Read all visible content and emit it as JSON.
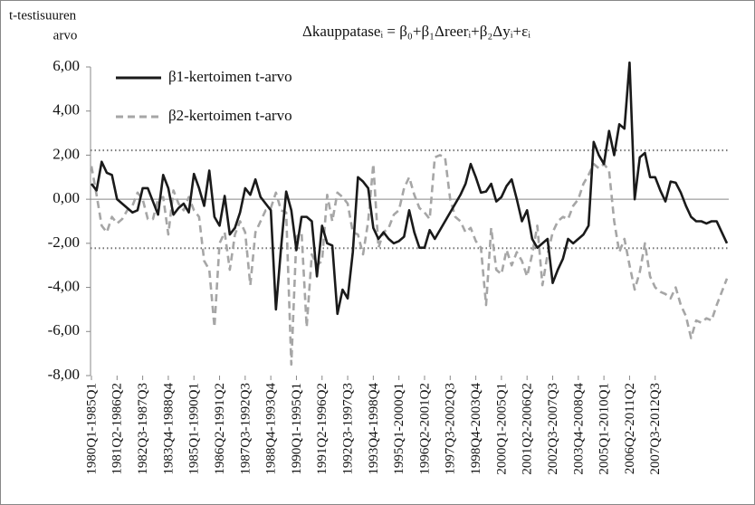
{
  "chart_data": {
    "type": "line",
    "title": "Δkauppataseᵢ = β₀+β₁Δreerᵢ+β₂Δyᵢ+εᵢ",
    "y_label": [
      "t-testisuuren",
      "arvo"
    ],
    "categories": [
      "1980Q1-1985Q1",
      null,
      null,
      null,
      null,
      "1981Q2-1986Q2",
      null,
      null,
      null,
      null,
      "1982Q3-1987Q3",
      null,
      null,
      null,
      null,
      "1983Q4-1988Q4",
      null,
      null,
      null,
      null,
      "1985Q1-1990Q1",
      null,
      null,
      null,
      null,
      "1986Q2-1991Q2",
      null,
      null,
      null,
      null,
      "1987Q3-1992Q3",
      null,
      null,
      null,
      null,
      "1988Q4-1993Q4",
      null,
      null,
      null,
      null,
      "1990Q1-1995Q1",
      null,
      null,
      null,
      null,
      "1991Q2-1996Q2",
      null,
      null,
      null,
      null,
      "1992Q3-1997Q3",
      null,
      null,
      null,
      null,
      "1993Q4-1998Q4",
      null,
      null,
      null,
      null,
      "1995Q1-2000Q1",
      null,
      null,
      null,
      null,
      "1996Q2-2001Q2",
      null,
      null,
      null,
      null,
      "1997Q3-2002Q3",
      null,
      null,
      null,
      null,
      "1998Q4-2003Q4",
      null,
      null,
      null,
      null,
      "2000Q1-2005Q1",
      null,
      null,
      null,
      null,
      "2001Q2-2006Q2",
      null,
      null,
      null,
      null,
      "2002Q3-2007Q3",
      null,
      null,
      null,
      null,
      "2003Q4-2008Q4",
      null,
      null,
      null,
      null,
      "2005Q1-2010Q1",
      null,
      null,
      null,
      null,
      "2006Q2-2011Q2",
      null,
      null,
      null,
      null,
      "2007Q3-2012Q3",
      null,
      null,
      null,
      null,
      null,
      null,
      null,
      null,
      null,
      null,
      null,
      null,
      null,
      null
    ],
    "series": [
      {
        "name": "β1-kertoimen t-arvo",
        "color": "#1a1a1a",
        "dashed": false,
        "values": [
          0.7,
          0.4,
          1.7,
          1.2,
          1.1,
          0.0,
          -0.2,
          -0.4,
          -0.6,
          -0.5,
          0.5,
          0.5,
          -0.1,
          -0.7,
          1.1,
          0.5,
          -0.7,
          -0.4,
          -0.2,
          -0.6,
          1.15,
          0.5,
          -0.3,
          1.3,
          -0.8,
          -1.2,
          0.15,
          -1.6,
          -1.3,
          -0.6,
          0.5,
          0.2,
          0.9,
          0.1,
          -0.2,
          -0.5,
          -5.0,
          -2.2,
          0.35,
          -0.5,
          -2.3,
          -0.8,
          -0.8,
          -1.0,
          -3.5,
          -1.2,
          -2.0,
          -2.1,
          -5.2,
          -4.1,
          -4.5,
          -2.4,
          1.0,
          0.8,
          0.5,
          -1.3,
          -1.8,
          -1.5,
          -1.8,
          -2.0,
          -1.9,
          -1.7,
          -0.5,
          -1.5,
          -2.2,
          -2.2,
          -1.4,
          -1.8,
          -1.4,
          -1.0,
          -0.6,
          -0.2,
          0.2,
          0.7,
          1.6,
          1.0,
          0.3,
          0.35,
          0.7,
          -0.1,
          0.1,
          0.6,
          0.9,
          0.0,
          -1.0,
          -0.5,
          -1.8,
          -2.2,
          -2.0,
          -1.8,
          -3.8,
          -3.2,
          -2.7,
          -1.8,
          -2.0,
          -1.8,
          -1.6,
          -1.2,
          2.6,
          2.0,
          1.6,
          3.1,
          2.0,
          3.4,
          3.2,
          6.2,
          0.0,
          1.9,
          2.1,
          1.0,
          1.0,
          0.4,
          -0.1,
          0.8,
          0.75,
          0.3,
          -0.3,
          -0.8,
          -1.0,
          -1.0,
          -1.1,
          -1.0,
          -1.0,
          -1.5,
          -2.0
        ]
      },
      {
        "name": "β2-kertoimen t-arvo",
        "color": "#a6a6a6",
        "dashed": true,
        "values": [
          1.5,
          0.2,
          -1.2,
          -1.5,
          -0.8,
          -1.1,
          -0.9,
          -0.5,
          -0.3,
          0.3,
          0.0,
          -0.9,
          -0.9,
          0.0,
          0.1,
          -1.6,
          0.4,
          -0.2,
          -0.5,
          0.1,
          -0.5,
          -0.8,
          -2.8,
          -3.2,
          -5.8,
          -2.0,
          -1.5,
          -3.2,
          -1.6,
          -1.0,
          -1.5,
          -3.9,
          -1.5,
          -1.0,
          -0.5,
          -0.4,
          0.3,
          -0.5,
          -0.6,
          -7.5,
          -1.7,
          -1.5,
          -5.8,
          -2.5,
          -3.0,
          -2.8,
          0.2,
          -1.0,
          0.3,
          0.1,
          -0.2,
          -1.5,
          -1.6,
          -2.5,
          -1.0,
          1.6,
          -2.2,
          -1.5,
          -1.3,
          -0.7,
          -0.5,
          0.5,
          1.0,
          0.2,
          -0.4,
          -0.6,
          -0.9,
          1.9,
          2.0,
          1.9,
          0.0,
          -0.8,
          -1.0,
          -1.5,
          -1.3,
          -1.9,
          -2.2,
          -4.8,
          -1.3,
          -3.2,
          -3.4,
          -2.3,
          -3.0,
          -2.4,
          -2.8,
          -3.5,
          -2.5,
          -1.2,
          -3.9,
          -2.5,
          -1.5,
          -1.0,
          -0.8,
          -0.9,
          -0.3,
          0.0,
          0.7,
          1.1,
          1.6,
          1.4,
          1.6,
          1.3,
          -1.0,
          -2.4,
          -1.8,
          -3.0,
          -4.1,
          -3.3,
          -2.0,
          -3.5,
          -4.0,
          -4.2,
          -4.3,
          -4.5,
          -4.0,
          -4.8,
          -5.3,
          -6.3,
          -5.5,
          -5.6,
          -5.4,
          -5.5,
          -4.8,
          -4.2,
          -3.6
        ]
      }
    ],
    "hlines": [
      2.22,
      -2.22
    ],
    "ylim": [
      -8,
      6
    ],
    "yticks": [
      {
        "value": -8,
        "label": "-8,00"
      },
      {
        "value": -6,
        "label": "-6,00"
      },
      {
        "value": -4,
        "label": "-4,00"
      },
      {
        "value": -2,
        "label": "-2,00"
      },
      {
        "value": 0,
        "label": "0,00"
      },
      {
        "value": 2,
        "label": "2,00"
      },
      {
        "value": 4,
        "label": "4,00"
      },
      {
        "value": 6,
        "label": "6,00"
      }
    ],
    "grid": false
  }
}
